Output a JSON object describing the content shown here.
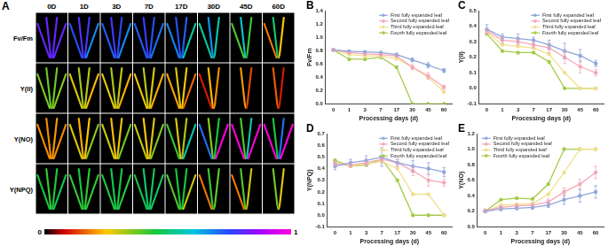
{
  "panel_a": {
    "title": "A",
    "columns": [
      "0D",
      "1D",
      "3D",
      "7D",
      "17D",
      "30D",
      "45D",
      "60D"
    ],
    "rows": [
      "Fv/Fm",
      "Y(II)",
      "Y(NO)",
      "Y(NPQ)"
    ],
    "colorbar": {
      "range": [
        0,
        1
      ],
      "ticks": [
        0,
        1
      ]
    }
  },
  "chart_data": [
    {
      "type": "line",
      "title": "B",
      "x_label": "Processing days (d)",
      "y_label": "Fv/Fm",
      "categories": [
        0,
        1,
        3,
        7,
        17,
        30,
        45,
        60
      ],
      "ylim": [
        0,
        1.4
      ],
      "yticks": [
        {
          "value": 0,
          "label": "0.0"
        },
        0.2,
        0.4,
        0.6,
        0.8,
        {
          "value": 1,
          "label": "1.0"
        },
        1.2,
        1.4
      ],
      "grid": false,
      "legend": "top right",
      "marker": "circle",
      "series": [
        {
          "name": "First fully expanded leaf",
          "color": "#8fa5dc",
          "values": [
            0.81,
            0.79,
            0.78,
            0.77,
            0.74,
            0.66,
            0.58,
            0.5
          ],
          "errors": [
            0.01,
            0.01,
            0.01,
            0.01,
            0.02,
            0.03,
            0.04,
            0.03
          ]
        },
        {
          "name": "Second fully expanded leaf",
          "color": "#f5a7b8",
          "values": [
            0.81,
            0.77,
            0.75,
            0.74,
            0.72,
            0.55,
            0.42,
            0.25
          ],
          "errors": [
            0.01,
            0.01,
            0.01,
            0.02,
            0.02,
            0.04,
            0.05,
            0.03
          ]
        },
        {
          "name": "Third fully expanded leaf",
          "color": "#f3df8c",
          "values": [
            0.81,
            0.74,
            0.72,
            0.72,
            0.68,
            0.55,
            0.4,
            0.18
          ]
        },
        {
          "name": "Fourth fully expanded leaf",
          "color": "#a6cb4b",
          "values": [
            0.81,
            0.67,
            0.67,
            0.7,
            0.55,
            0,
            0,
            0
          ]
        }
      ]
    },
    {
      "type": "line",
      "title": "C",
      "x_label": "Processing days (d)",
      "y_label": "Y(II)",
      "categories": [
        0,
        1,
        3,
        7,
        17,
        30,
        45,
        60
      ],
      "ylim": [
        -0.1,
        0.5
      ],
      "yticks": [
        -0.1,
        {
          "value": 0,
          "label": "0.0"
        },
        0.1,
        0.2,
        0.3,
        0.4,
        0.5
      ],
      "grid": false,
      "legend": "top right",
      "marker": "circle",
      "series": [
        {
          "name": "First fully expanded leaf",
          "color": "#8fa5dc",
          "values": [
            0.38,
            0.33,
            0.32,
            0.31,
            0.28,
            0.24,
            0.21,
            0.16
          ],
          "errors": [
            0.03,
            0.02,
            0.03,
            0.02,
            0.03,
            0.05,
            0.04,
            0.02
          ]
        },
        {
          "name": "Second fully expanded leaf",
          "color": "#f5a7b8",
          "values": [
            0.37,
            0.31,
            0.3,
            0.28,
            0.26,
            0.2,
            0.14,
            0.1
          ],
          "errors": [
            0.02,
            0.02,
            0.02,
            0.02,
            0.03,
            0.04,
            0.04,
            0.02
          ]
        },
        {
          "name": "Third fully expanded leaf",
          "color": "#f3df8c",
          "values": [
            0.36,
            0.28,
            0.27,
            0.26,
            0.22,
            0.1,
            0,
            0
          ]
        },
        {
          "name": "Fourth fully expanded leaf",
          "color": "#a6cb4b",
          "values": [
            0.35,
            0.24,
            0.23,
            0.23,
            0.17,
            0,
            0,
            0
          ]
        }
      ]
    },
    {
      "type": "line",
      "title": "D",
      "x_label": "Processing days (d)",
      "y_label": "Y(NPQ)",
      "categories": [
        0,
        1,
        3,
        7,
        17,
        30,
        45,
        60
      ],
      "ylim": [
        -0.1,
        0.7
      ],
      "yticks": [
        -0.1,
        {
          "value": 0,
          "label": "0.0"
        },
        0.1,
        0.2,
        0.3,
        0.4,
        0.5,
        0.6,
        0.7
      ],
      "grid": false,
      "legend": "top right",
      "marker": "circle",
      "series": [
        {
          "name": "First fully expanded leaf",
          "color": "#8fa5dc",
          "values": [
            0.42,
            0.45,
            0.47,
            0.5,
            0.45,
            0.42,
            0.4,
            0.37
          ],
          "errors": [
            0.03,
            0.03,
            0.04,
            0.08,
            0.03,
            0.05,
            0.05,
            0.04
          ]
        },
        {
          "name": "Second fully expanded leaf",
          "color": "#f5a7b8",
          "values": [
            0.44,
            0.43,
            0.45,
            0.48,
            0.45,
            0.38,
            0.3,
            0.28
          ],
          "errors": [
            0.02,
            0.02,
            0.03,
            0.03,
            0.03,
            0.04,
            0.05,
            0.03
          ]
        },
        {
          "name": "Third fully expanded leaf",
          "color": "#f3df8c",
          "values": [
            0.45,
            0.42,
            0.44,
            0.46,
            0.4,
            0.18,
            0.18,
            0
          ]
        },
        {
          "name": "Fourth fully expanded leaf",
          "color": "#a6cb4b",
          "values": [
            0.47,
            0.42,
            0.43,
            0.48,
            0.3,
            0,
            0,
            0
          ]
        }
      ]
    },
    {
      "type": "line",
      "title": "E",
      "x_label": "Processing days (d)",
      "y_label": "Y(NO)",
      "categories": [
        0,
        1,
        3,
        7,
        17,
        30,
        45,
        60
      ],
      "ylim": [
        0,
        1.2
      ],
      "yticks": [
        {
          "value": 0,
          "label": "0.0"
        },
        0.2,
        0.4,
        0.6,
        0.8,
        {
          "value": 1,
          "label": "1.0"
        },
        1.2
      ],
      "grid": false,
      "legend": "top left",
      "marker": "circle",
      "series": [
        {
          "name": "First fully expanded leaf",
          "color": "#8fa5dc",
          "values": [
            0.2,
            0.23,
            0.24,
            0.25,
            0.28,
            0.35,
            0.4,
            0.45
          ],
          "errors": [
            0.01,
            0.02,
            0.02,
            0.02,
            0.03,
            0.06,
            0.08,
            0.08
          ]
        },
        {
          "name": "Second fully expanded leaf",
          "color": "#f5a7b8",
          "values": [
            0.21,
            0.25,
            0.27,
            0.28,
            0.32,
            0.45,
            0.55,
            0.7
          ],
          "errors": [
            0.02,
            0.02,
            0.03,
            0.02,
            0.04,
            0.05,
            0.06,
            0.08
          ]
        },
        {
          "name": "Third fully expanded leaf",
          "color": "#f3df8c",
          "values": [
            0.2,
            0.28,
            0.29,
            0.3,
            0.42,
            0.7,
            1.0,
            1.0
          ]
        },
        {
          "name": "Fourth fully expanded leaf",
          "color": "#a6cb4b",
          "values": [
            0.2,
            0.35,
            0.37,
            0.36,
            0.55,
            1.0,
            1.0,
            1.0
          ]
        }
      ]
    }
  ]
}
